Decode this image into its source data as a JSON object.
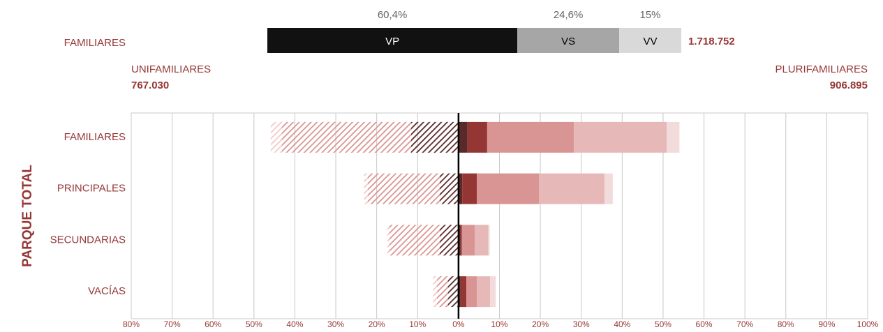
{
  "chart_data": [
    {
      "type": "stacked_bar_h",
      "category": "FAMILIARES",
      "categories": [
        "VP",
        "VS",
        "VV"
      ],
      "values": [
        60.4,
        24.6,
        15
      ],
      "value_labels": [
        "60,4%",
        "24,6%",
        "15%"
      ],
      "colors": [
        "#111111",
        "#a6a6a6",
        "#d9d9d9"
      ],
      "label_colors": [
        "#ffffff",
        "#000000",
        "#000000"
      ],
      "total": {
        "value": 1718752,
        "label": "1.718.752"
      }
    },
    {
      "type": "diverging_bar",
      "y_title": "PARQUE TOTAL",
      "left_title": "UNIFAMILIARES",
      "left_total": {
        "value": 767030,
        "label": "767.030"
      },
      "right_title": "PLURIFAMILIARES",
      "right_total": {
        "value": 906895,
        "label": "906.895"
      },
      "categories": [
        "FAMILIARES",
        "PRINCIPALES",
        "SECUNDARIAS",
        "VACÍAS"
      ],
      "series": [
        {
          "color": "#5a2a2a",
          "pattern": "hatch",
          "values": [
            -11.6,
            -4.6,
            -4.6,
            -2.6
          ]
        },
        {
          "color": "#d99594",
          "pattern": "hatch",
          "values": [
            -31.6,
            -17.6,
            -12.3,
            -2.7
          ]
        },
        {
          "color": "#f2c9c8",
          "pattern": "hatch",
          "values": [
            -2.7,
            -0.9,
            -0.5,
            -0.9
          ]
        },
        {
          "color": "#5a2a2a",
          "values": [
            2.2,
            0.9,
            0.5,
            0.5
          ]
        },
        {
          "color": "#943634",
          "values": [
            4.8,
            3.6,
            0.3,
            1.4
          ]
        },
        {
          "color": "#d99594",
          "values": [
            21.2,
            15.2,
            3.2,
            2.6
          ]
        },
        {
          "color": "#e6b9b8",
          "values": [
            22.7,
            16.0,
            3.3,
            3.2
          ]
        },
        {
          "color": "#f2dcdb",
          "values": [
            3.1,
            2.0,
            0.3,
            1.4
          ]
        }
      ],
      "xlim": [
        -80,
        100
      ],
      "xticks": [
        {
          "value": -80,
          "label": "80%"
        },
        {
          "value": -70,
          "label": "70%"
        },
        {
          "value": -60,
          "label": "60%"
        },
        {
          "value": -50,
          "label": "50%"
        },
        {
          "value": -40,
          "label": "40%"
        },
        {
          "value": -30,
          "label": "30%"
        },
        {
          "value": -20,
          "label": "20%"
        },
        {
          "value": -10,
          "label": "10%"
        },
        {
          "value": 0,
          "label": "0%"
        },
        {
          "value": 10,
          "label": "10%"
        },
        {
          "value": 20,
          "label": "20%"
        },
        {
          "value": 30,
          "label": "30%"
        },
        {
          "value": 40,
          "label": "40%"
        },
        {
          "value": 50,
          "label": "50%"
        },
        {
          "value": 60,
          "label": "60%"
        },
        {
          "value": 70,
          "label": "70%"
        },
        {
          "value": 80,
          "label": "80%"
        },
        {
          "value": 90,
          "label": "90%"
        },
        {
          "value": 100,
          "label": "100%"
        }
      ],
      "grid": true
    }
  ]
}
